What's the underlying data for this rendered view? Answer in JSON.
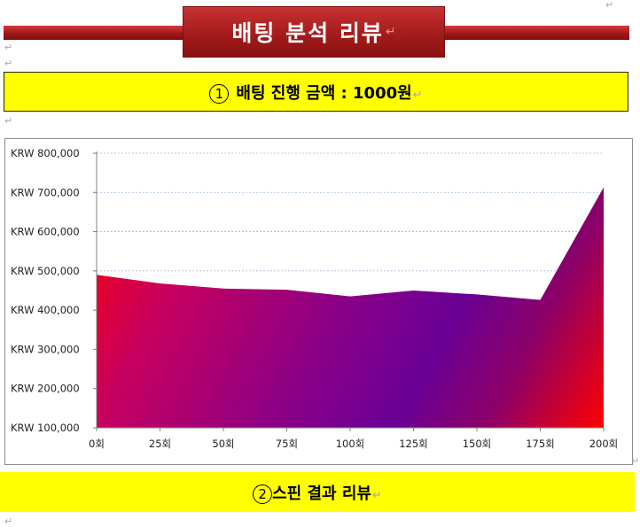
{
  "title": {
    "text": "배팅 분석 리뷰",
    "return_mark": "↵"
  },
  "marks": {
    "paragraph": "↵"
  },
  "section1": {
    "number": "1",
    "label": "배팅 진행 금액 : 1000원",
    "return_mark": "↵"
  },
  "section2": {
    "number": "2",
    "label": "스핀 결과 리뷰",
    "return_mark": "↵"
  },
  "colors": {
    "title_red": "#a11a1a",
    "highlight_yellow": "#ffff00",
    "area_red": "#ff0000",
    "area_purple": "#6a0096",
    "gridline": "#9ab8d8"
  },
  "chart_data": {
    "type": "area",
    "categories": [
      "0회",
      "25회",
      "50회",
      "75회",
      "100회",
      "125회",
      "150회",
      "175회",
      "200회"
    ],
    "series": [
      {
        "values": [
          490000,
          468000,
          455000,
          452000,
          435000,
          450000,
          440000,
          426000,
          713000
        ]
      }
    ],
    "ylim": [
      100000,
      800000
    ],
    "yticks": [
      800000,
      700000,
      600000,
      500000,
      400000,
      300000,
      200000,
      100000
    ],
    "ytick_labels": [
      "KRW 800,000",
      "KRW 700,000",
      "KRW 600,000",
      "KRW 500,000",
      "KRW 400,000",
      "KRW 300,000",
      "KRW 200,000",
      "KRW 100,000"
    ],
    "grid": true,
    "legend": false
  }
}
